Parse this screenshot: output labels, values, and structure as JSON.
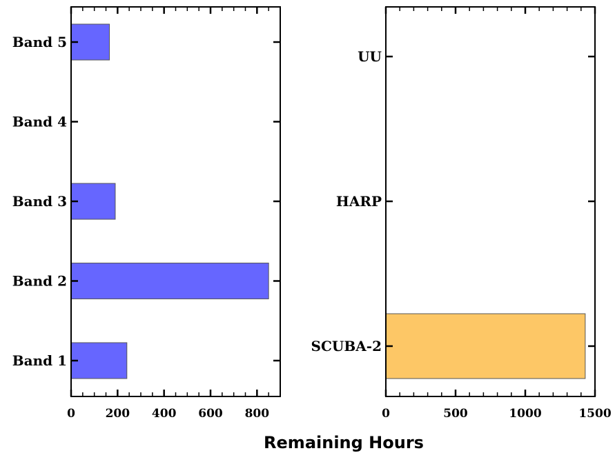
{
  "chart_data": [
    {
      "type": "bar",
      "orientation": "horizontal",
      "categories": [
        "Band 1",
        "Band 2",
        "Band 3",
        "Band 4",
        "Band 5"
      ],
      "values": [
        240,
        850,
        190,
        0,
        165
      ],
      "xlim": [
        0,
        900
      ],
      "xticks": [
        "0",
        "200",
        "400",
        "600",
        "800"
      ],
      "color": "#6666ff"
    },
    {
      "type": "bar",
      "orientation": "horizontal",
      "categories": [
        "SCUBA-2",
        "HARP",
        "UU"
      ],
      "values": [
        1430,
        0,
        0
      ],
      "xlim": [
        0,
        1500
      ],
      "xticks": [
        "0",
        "500",
        "1000",
        "1500"
      ],
      "color": "#fdc766"
    }
  ],
  "xlabel": "Remaining Hours"
}
